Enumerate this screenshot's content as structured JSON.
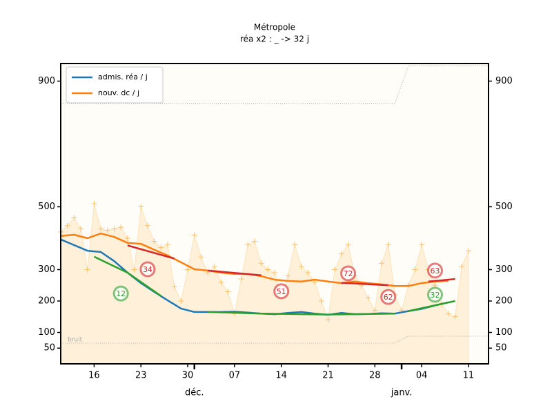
{
  "chart_data": {
    "type": "line",
    "title": "Métropole",
    "subtitle": "réa x2 : _ -> 32 j",
    "x": [
      "11-11",
      "11-13",
      "11-15",
      "11-17",
      "11-19",
      "11-21",
      "11-23",
      "11-25",
      "11-27",
      "11-29",
      "12-01",
      "12-03",
      "12-05",
      "12-07",
      "12-09",
      "12-11",
      "12-13",
      "12-15",
      "12-17",
      "12-19",
      "12-21",
      "12-23",
      "12-25",
      "12-27",
      "12-29",
      "12-31",
      "01-02",
      "01-04",
      "01-06",
      "01-08"
    ],
    "series": [
      {
        "name": "admis. réa / j",
        "color": "#1f77b4",
        "values": [
          396,
          378,
          360,
          356,
          327,
          290,
          257,
          229,
          202,
          176,
          165,
          165,
          165,
          166,
          163,
          160,
          158,
          162,
          165,
          160,
          156,
          162,
          158,
          159,
          161,
          160,
          168,
          175,
          186,
          196
        ]
      },
      {
        "name": "nouv. dc / j",
        "color": "#ff7f0e",
        "values": [
          407,
          411,
          400,
          415,
          404,
          385,
          382,
          363,
          345,
          323,
          301,
          297,
          290,
          286,
          286,
          279,
          268,
          264,
          262,
          268,
          262,
          257,
          262,
          257,
          253,
          248,
          248,
          257,
          262,
          264
        ]
      }
    ],
    "daily": {
      "color": "#ffbf66",
      "x": [
        "11-11",
        "11-12",
        "11-13",
        "11-14",
        "11-15",
        "11-16",
        "11-17",
        "11-18",
        "11-19",
        "11-20",
        "11-21",
        "11-22",
        "11-23",
        "11-24",
        "11-25",
        "11-26",
        "11-27",
        "11-28",
        "11-29",
        "11-30",
        "12-01",
        "12-02",
        "12-03",
        "12-04",
        "12-05",
        "12-06",
        "12-07",
        "12-08",
        "12-09",
        "12-10",
        "12-11",
        "12-12",
        "12-13",
        "12-14",
        "12-15",
        "12-16",
        "12-17",
        "12-18",
        "12-19",
        "12-20",
        "12-21",
        "12-22",
        "12-23",
        "12-24",
        "12-25",
        "12-26",
        "12-27",
        "12-28",
        "12-29",
        "12-30",
        "12-31",
        "01-01",
        "01-02",
        "01-03",
        "01-04",
        "01-05",
        "01-06",
        "01-07",
        "01-08",
        "01-09",
        "01-10",
        "01-11"
      ],
      "values": [
        420,
        440,
        465,
        430,
        300,
        510,
        430,
        425,
        430,
        435,
        400,
        300,
        500,
        440,
        390,
        370,
        380,
        245,
        200,
        300,
        410,
        340,
        290,
        310,
        260,
        230,
        160,
        270,
        380,
        390,
        320,
        300,
        290,
        220,
        280,
        380,
        310,
        290,
        260,
        200,
        140,
        300,
        350,
        380,
        280,
        250,
        210,
        170,
        320,
        380,
        220,
        170,
        250,
        300,
        380,
        300,
        250,
        190,
        160,
        150,
        310,
        360
      ]
    },
    "trends": [
      {
        "color": "#2ca02c",
        "x": [
          "11-16",
          "11-21",
          "11-26"
        ],
        "values": [
          341,
          290,
          216
        ]
      },
      {
        "color": "#2ca02c",
        "x": [
          "12-03",
          "12-11",
          "12-21",
          "12-31"
        ],
        "values": [
          165,
          160,
          157,
          160
        ]
      },
      {
        "color": "#2ca02c",
        "x": [
          "01-02",
          "01-09"
        ],
        "values": [
          168,
          200
        ]
      },
      {
        "color": "#d62728",
        "x": [
          "11-21",
          "11-28"
        ],
        "values": [
          377,
          335
        ]
      },
      {
        "color": "#d62728",
        "x": [
          "12-03",
          "12-11"
        ],
        "values": [
          297,
          282
        ]
      },
      {
        "color": "#d62728",
        "x": [
          "12-23",
          "12-30"
        ],
        "values": [
          258,
          250
        ]
      },
      {
        "color": "#d62728",
        "x": [
          "01-05",
          "01-09"
        ],
        "values": [
          262,
          270
        ]
      }
    ],
    "noise": [
      {
        "label": "bruit",
        "x": [
          "11-11",
          "12-31",
          "01-02",
          "01-14"
        ],
        "values": [
          66,
          66,
          88,
          88
        ]
      },
      {
        "x": [
          "11-11",
          "12-31",
          "01-02",
          "01-14"
        ],
        "values": [
          829,
          829,
          949,
          949
        ]
      }
    ],
    "annotations": [
      {
        "x": "11-20",
        "y": 224,
        "text": "12",
        "color": "#2ca02c"
      },
      {
        "x": "11-24",
        "y": 301,
        "text": "34",
        "color": "#d62728"
      },
      {
        "x": "12-14",
        "y": 231,
        "text": "51",
        "color": "#d62728"
      },
      {
        "x": "12-24",
        "y": 288,
        "text": "72",
        "color": "#d62728"
      },
      {
        "x": "12-30",
        "y": 213,
        "text": "62",
        "color": "#d62728"
      },
      {
        "x": "01-06",
        "y": 297,
        "text": "63",
        "color": "#d62728"
      },
      {
        "x": "01-06",
        "y": 220,
        "text": "32",
        "color": "#2ca02c"
      }
    ],
    "xlim": [
      "11-11",
      "01-14"
    ],
    "xticks": [
      {
        "value": "11-16",
        "label": "16"
      },
      {
        "value": "11-23",
        "label": "23"
      },
      {
        "value": "11-30",
        "label": "30"
      },
      {
        "value": "12-07",
        "label": "07"
      },
      {
        "value": "12-14",
        "label": "14"
      },
      {
        "value": "12-21",
        "label": "21"
      },
      {
        "value": "12-28",
        "label": "28"
      },
      {
        "value": "01-04",
        "label": "04"
      },
      {
        "value": "01-11",
        "label": "11"
      }
    ],
    "month_labels": [
      {
        "value": "12-01",
        "label": "déc."
      },
      {
        "value": "01-01",
        "label": "janv."
      }
    ],
    "ylim": [
      0,
      956
    ],
    "yticks": [
      50,
      100,
      200,
      300,
      500,
      900
    ],
    "mirror_y": true,
    "legend": "upper left"
  }
}
